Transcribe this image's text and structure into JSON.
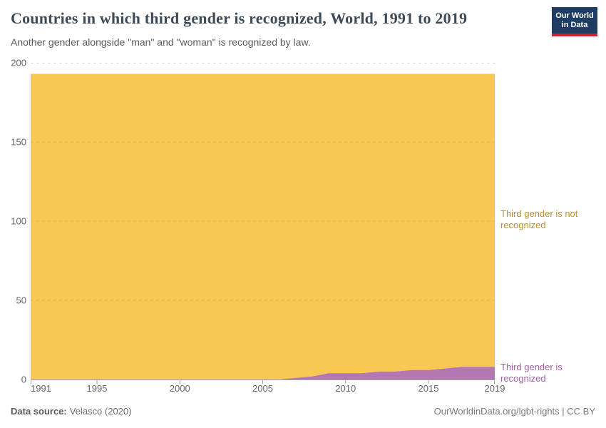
{
  "header": {
    "title": "Countries in which third gender is recognized, World, 1991 to 2019",
    "subtitle": "Another gender alongside \"man\" and \"woman\" is recognized by law.",
    "logo_line1": "Our World",
    "logo_line2": "in Data",
    "logo_bg_color": "#1d3d63",
    "logo_bar_color": "#c5292f"
  },
  "chart_data": {
    "type": "area",
    "stacked": true,
    "title": "Countries in which third gender is recognized, World, 1991 to 2019",
    "xlabel": "",
    "ylabel": "",
    "x": [
      1991,
      1992,
      1993,
      1994,
      1995,
      1996,
      1997,
      1998,
      1999,
      2000,
      2001,
      2002,
      2003,
      2004,
      2005,
      2006,
      2007,
      2008,
      2009,
      2010,
      2011,
      2012,
      2013,
      2014,
      2015,
      2016,
      2017,
      2018,
      2019
    ],
    "series": [
      {
        "name": "Third gender is recognized",
        "color": "#b377b1",
        "label_color": "#a263a5",
        "values": [
          0,
          0,
          0,
          0,
          0,
          0,
          0,
          0,
          0,
          0,
          0,
          0,
          0,
          0,
          0,
          0,
          1,
          2,
          4,
          4,
          4,
          5,
          5,
          6,
          6,
          7,
          8,
          8,
          8
        ]
      },
      {
        "name": "Third gender is not recognized",
        "color": "#fac851",
        "label_color": "#bf8f2d",
        "values": [
          193,
          193,
          193,
          193,
          193,
          193,
          193,
          193,
          193,
          193,
          193,
          193,
          193,
          193,
          193,
          193,
          192,
          191,
          189,
          189,
          189,
          188,
          188,
          187,
          187,
          186,
          185,
          185,
          185
        ]
      }
    ],
    "total_countries": 193,
    "ylim": [
      0,
      200
    ],
    "yticks": [
      0,
      50,
      100,
      150,
      200
    ],
    "xticks": [
      1991,
      1995,
      2000,
      2005,
      2010,
      2015,
      2019
    ],
    "grid": "dashed-horizontal",
    "legend_position": "right-edge-labels"
  },
  "footer": {
    "source_label": "Data source:",
    "source_value": "Velasco (2020)",
    "credit": "OurWorldinData.org/lgbt-rights | CC BY"
  }
}
